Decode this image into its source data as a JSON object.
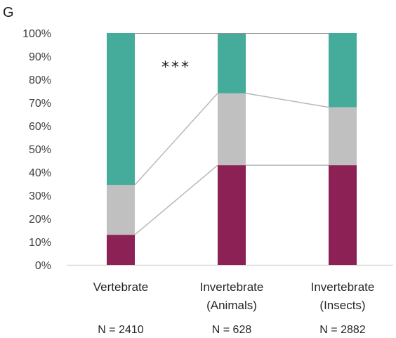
{
  "panel_label": "G",
  "significance": "***",
  "colors": {
    "bottom": "#8b2155",
    "middle": "#c0c0c0",
    "top": "#45ab9a",
    "connector": "#b8b8b8",
    "axis": "#d9d9d9"
  },
  "chart_data": {
    "type": "bar",
    "stacked": true,
    "percent": true,
    "categories": [
      [
        "Vertebrate"
      ],
      [
        "Invertebrate",
        "(Animals)"
      ],
      [
        "Invertebrate",
        "(Insects)"
      ]
    ],
    "sample_sizes": [
      "N = 2410",
      "N = 628",
      "N = 2882"
    ],
    "series": [
      {
        "values": [
          13,
          43,
          43
        ],
        "color_key": "bottom"
      },
      {
        "values": [
          21.5,
          31,
          25
        ],
        "color_key": "middle"
      },
      {
        "values": [
          65.5,
          26,
          32
        ],
        "color_key": "top"
      }
    ],
    "yticks": [
      "0%",
      "10%",
      "20%",
      "30%",
      "40%",
      "50%",
      "60%",
      "70%",
      "80%",
      "90%",
      "100%"
    ],
    "ylim": [
      0,
      100
    ],
    "connector_lines": true,
    "grid": false,
    "legend": "none",
    "annotation": "***"
  }
}
